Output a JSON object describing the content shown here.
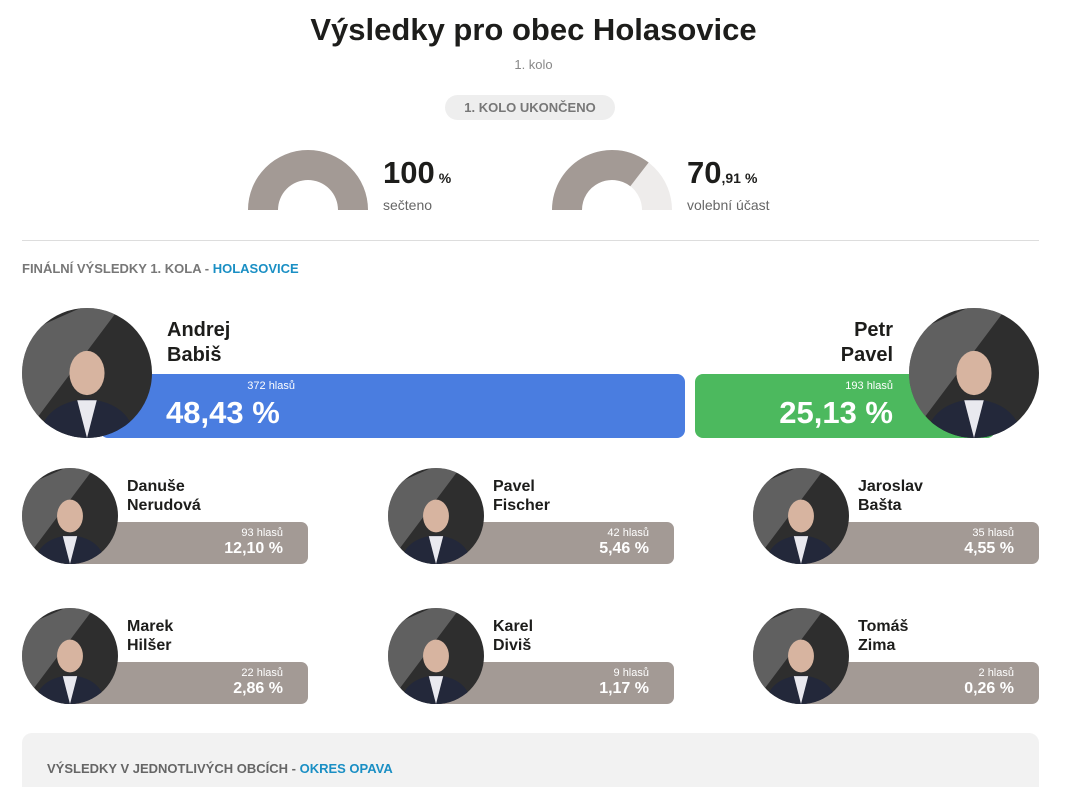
{
  "header": {
    "title": "Výsledky pro obec Holasovice",
    "round": "1. kolo",
    "status": "1. KOLO UKONČENO"
  },
  "stats": [
    {
      "whole": "100",
      "unit": "%",
      "label": "sečteno",
      "value": 100
    },
    {
      "whole": "70",
      "fraction": ",91",
      "unit": "%",
      "label": "volební účast",
      "value": 70.91
    }
  ],
  "results": {
    "heading": "FINÁLNÍ VÝSLEDKY 1. KOLA -",
    "place": "HOLASOVICE",
    "leaders": [
      {
        "first": "Andrej",
        "last": "Babiš",
        "votes": "372 hlasů",
        "percent": "48,43 %",
        "color": "#4a7de0"
      },
      {
        "first": "Petr",
        "last": "Pavel",
        "votes": "193 hlasů",
        "percent": "25,13 %",
        "color": "#4cb95e"
      }
    ],
    "others": [
      {
        "first": "Danuše",
        "last": "Nerudová",
        "votes": "93 hlasů",
        "percent": "12,10 %"
      },
      {
        "first": "Pavel",
        "last": "Fischer",
        "votes": "42 hlasů",
        "percent": "5,46 %"
      },
      {
        "first": "Jaroslav",
        "last": "Bašta",
        "votes": "35 hlasů",
        "percent": "4,55 %"
      },
      {
        "first": "Marek",
        "last": "Hilšer",
        "votes": "22 hlasů",
        "percent": "2,86 %"
      },
      {
        "first": "Karel",
        "last": "Diviš",
        "votes": "9 hlasů",
        "percent": "1,17 %"
      },
      {
        "first": "Tomáš",
        "last": "Zima",
        "votes": "2 hlasů",
        "percent": "0,26 %"
      }
    ]
  },
  "municipalities": {
    "heading": "VÝSLEDKY V JEDNOTLIVÝCH OBCÍCH -",
    "district": "OKRES OPAVA"
  }
}
